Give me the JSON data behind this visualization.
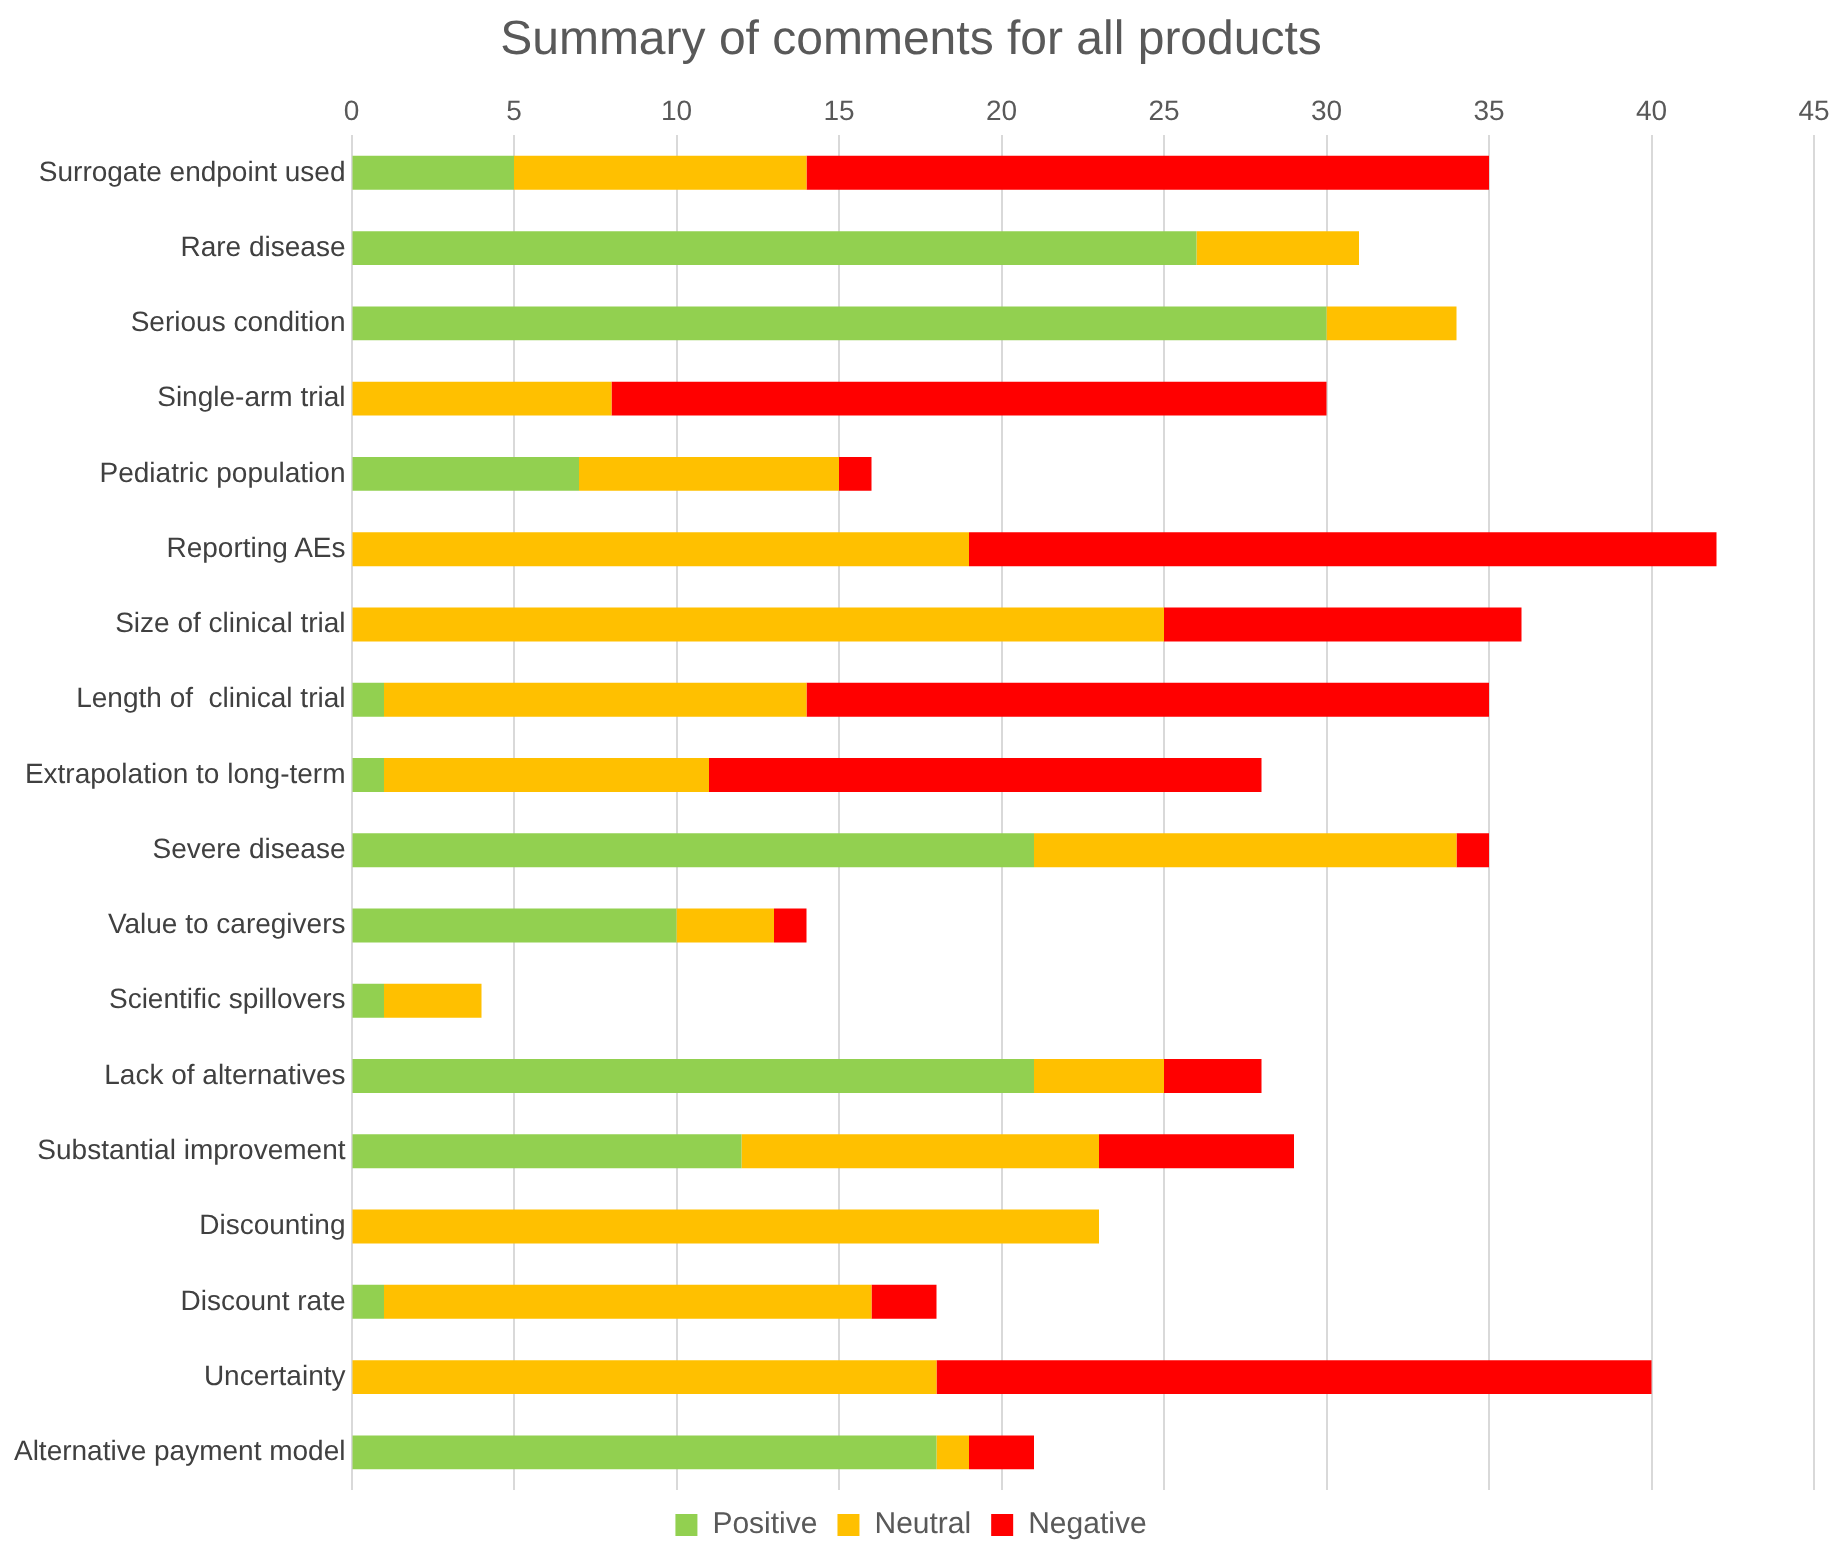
{
  "chart_data": {
    "type": "bar",
    "orientation": "horizontal",
    "stacked": true,
    "title": "Summary of comments for all products",
    "categories": [
      "Surrogate endpoint used",
      "Rare disease",
      "Serious condition",
      "Single-arm trial",
      "Pediatric population",
      "Reporting AEs",
      "Size of clinical trial",
      "Length of  clinical trial",
      "Extrapolation to long-term",
      "Severe disease",
      "Value to caregivers",
      "Scientific spillovers",
      "Lack of alternatives",
      "Substantial improvement",
      "Discounting",
      "Discount rate",
      "Uncertainty",
      "Alternative payment model"
    ],
    "series": [
      {
        "name": "Positive",
        "color": "#92d050",
        "values": [
          5,
          26,
          30,
          0,
          7,
          0,
          0,
          1,
          1,
          21,
          10,
          1,
          21,
          12,
          0,
          1,
          0,
          18
        ]
      },
      {
        "name": "Neutral",
        "color": "#ffc000",
        "values": [
          9,
          5,
          4,
          8,
          8,
          19,
          25,
          13,
          10,
          13,
          3,
          3,
          4,
          11,
          23,
          15,
          18,
          1
        ]
      },
      {
        "name": "Negative",
        "color": "#ff0000",
        "values": [
          21,
          0,
          0,
          22,
          1,
          23,
          11,
          21,
          17,
          1,
          1,
          0,
          3,
          6,
          0,
          2,
          22,
          2
        ]
      }
    ],
    "xlim": [
      0,
      45
    ],
    "xticks": [
      0,
      5,
      10,
      15,
      20,
      25,
      30,
      35,
      40,
      45
    ],
    "grid": "x",
    "legend": "bottom"
  }
}
